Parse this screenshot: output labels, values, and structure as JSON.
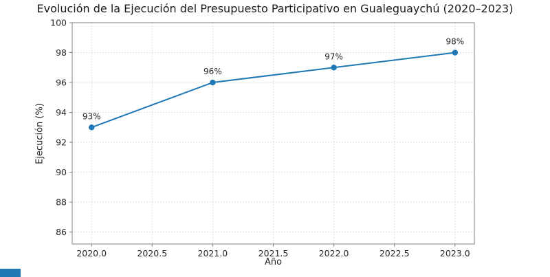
{
  "chart_data": {
    "type": "line",
    "title": "Evolución de la Ejecución del Presupuesto Participativo en Gualeguaychú (2020–2023)",
    "xlabel": "Año",
    "ylabel": "Ejecución (%)",
    "x": [
      2020,
      2021,
      2022,
      2023
    ],
    "values": [
      93,
      96,
      97,
      98
    ],
    "point_labels": [
      "93%",
      "96%",
      "97%",
      "98%"
    ],
    "xlim": [
      2019.84,
      2023.16
    ],
    "ylim": [
      85.2,
      100
    ],
    "xticks": [
      2020.0,
      2020.5,
      2021.0,
      2021.5,
      2022.0,
      2022.5,
      2023.0
    ],
    "xtick_labels": [
      "2020.0",
      "2020.5",
      "2021.0",
      "2021.5",
      "2022.0",
      "2022.5",
      "2023.0"
    ],
    "yticks": [
      86,
      88,
      90,
      92,
      94,
      96,
      98,
      100
    ],
    "ytick_labels": [
      "86",
      "88",
      "90",
      "92",
      "94",
      "96",
      "98",
      "100"
    ],
    "grid": true,
    "legend_position": "none",
    "line_color": "#1f77b4",
    "marker_color": "#1f77b4",
    "grid_color": "#cccccc",
    "spine_color": "#808080",
    "tick_text_color": "#262626",
    "background_color": "#ffffff",
    "corner_bar_color": "#1f77b4"
  }
}
